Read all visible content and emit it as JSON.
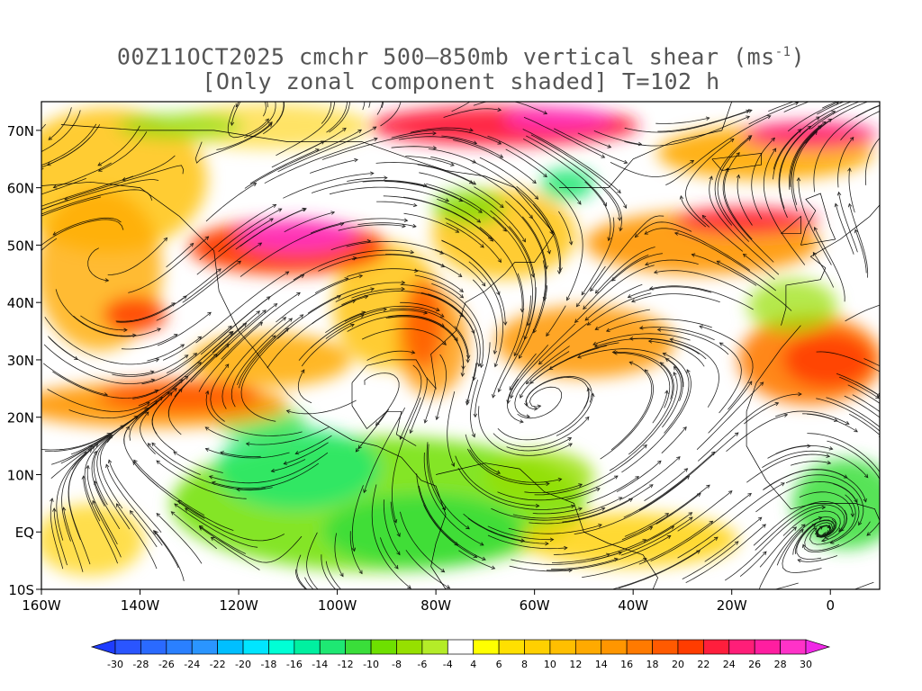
{
  "title": {
    "line1_prefix": "00Z11OCT2025 cmchr 500–850mb vertical shear (ms",
    "line1_sup": "-1",
    "line1_suffix": ")",
    "line2": "[Only zonal component shaded] T=102 h"
  },
  "map": {
    "lon_range": [
      -160,
      10
    ],
    "lat_range": [
      -10,
      75
    ],
    "x_ticks": [
      "160W",
      "140W",
      "120W",
      "100W",
      "80W",
      "60W",
      "40W",
      "20W",
      "0"
    ],
    "x_tick_values": [
      -160,
      -140,
      -120,
      -100,
      -80,
      -60,
      -40,
      -20,
      0
    ],
    "y_ticks": [
      "70N",
      "60N",
      "50N",
      "40N",
      "30N",
      "20N",
      "10N",
      "EQ",
      "10S"
    ],
    "y_tick_values": [
      70,
      60,
      50,
      40,
      30,
      20,
      10,
      0,
      -10
    ],
    "field": "zonal component of 500-850mb vertical shear",
    "overlay": "streamlines"
  },
  "colorbar": {
    "labels": [
      "-30",
      "-28",
      "-26",
      "-24",
      "-22",
      "-20",
      "-18",
      "-16",
      "-14",
      "-12",
      "-10",
      "-8",
      "-6",
      "-4",
      "4",
      "6",
      "8",
      "10",
      "12",
      "14",
      "16",
      "18",
      "20",
      "22",
      "24",
      "26",
      "28",
      "30"
    ],
    "colors": [
      "#1e3cff",
      "#2a55ff",
      "#2a6aff",
      "#2a80ff",
      "#2a95ff",
      "#00bfff",
      "#00e5ff",
      "#00ffd5",
      "#00f0a0",
      "#1ee873",
      "#3ade3a",
      "#6ee000",
      "#96e000",
      "#b4ec28",
      "#ffffff",
      "#ffff00",
      "#ffe000",
      "#ffd000",
      "#ffbf00",
      "#ffaa00",
      "#ff9600",
      "#ff7a00",
      "#ff5a00",
      "#ff3c00",
      "#ff1e3c",
      "#ff1e78",
      "#ff1ea0",
      "#ff32c8",
      "#f028e6"
    ]
  }
}
